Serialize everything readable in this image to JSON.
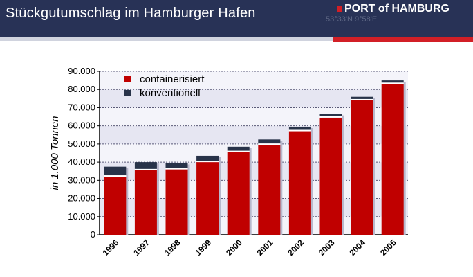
{
  "header": {
    "title": "Stückgutumschlag im Hamburger Hafen",
    "logo_text": "PORT of HAMBURG",
    "coordinates": "53°33'N 9°58'E"
  },
  "colors": {
    "header_bg": "#283256",
    "accent_red": "#d21f26",
    "containerised": "#c00000",
    "conventional": "#283349",
    "plot_band": "#e6e6f2"
  },
  "chart_data": {
    "type": "bar",
    "stacked": true,
    "categories": [
      "1996",
      "1997",
      "1998",
      "1999",
      "2000",
      "2001",
      "2002",
      "2003",
      "2004",
      "2005"
    ],
    "series": [
      {
        "name": "containerisiert",
        "values": [
          32000,
          35500,
          36000,
          40000,
          45500,
          49500,
          57000,
          64500,
          74000,
          83000
        ]
      },
      {
        "name": "konventionell",
        "values": [
          5500,
          4500,
          3500,
          3500,
          3000,
          3000,
          2500,
          2000,
          2000,
          2000
        ]
      }
    ],
    "ylabel": "in 1.000 Tonnen",
    "ylim": [
      0,
      90000
    ],
    "yticks": [
      "0",
      "10.000",
      "20.000",
      "30.000",
      "40.000",
      "50.000",
      "60.000",
      "70.000",
      "80.000",
      "90.000"
    ],
    "grid": true,
    "legend_position": "top-left"
  }
}
